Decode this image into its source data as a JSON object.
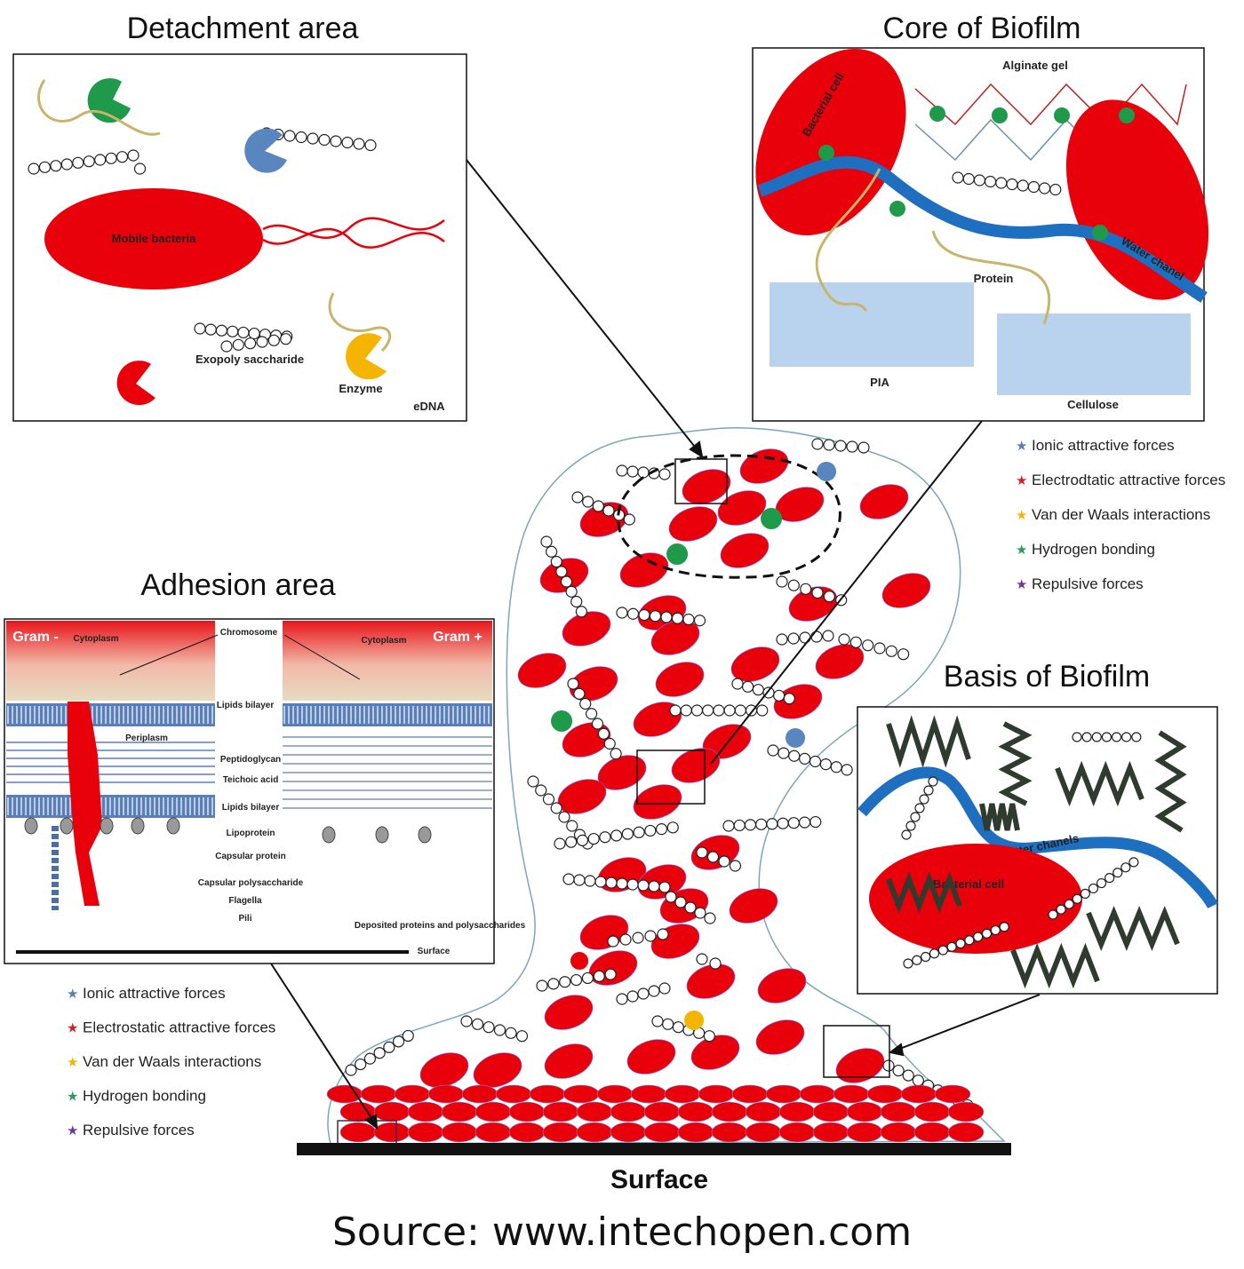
{
  "titles": {
    "detachment": "Detachment area",
    "core": "Core of Biofilm",
    "adhesion": "Adhesion area",
    "basis": "Basis of Biofilm"
  },
  "detachment_labels": {
    "mobile_bacteria": "Mobile bacteria",
    "exopolysaccharide": "Exopoly saccharide",
    "enzyme": "Enzyme",
    "edna": "eDNA"
  },
  "core_labels": {
    "bacterial_cell": "Bacterial cell",
    "alginate_gel": "Alginate gel",
    "water_chanel": "Water chanel",
    "protein": "Protein",
    "pia": "PIA",
    "cellulose": "Cellulose"
  },
  "adhesion_labels": {
    "gram_neg": "Gram -",
    "gram_pos": "Gram +",
    "cytoplasm_left": "Cytoplasm",
    "cytoplasm_right": "Cytoplasm",
    "chromosome": "Chromosome",
    "lipids_bilayer": "Lipids bilayer",
    "periplasm": "Periplasm",
    "peptidoglycan": "Peptidoglycan",
    "teichoic_acid": "Teichoic acid",
    "lipids_bilayer_2": "Lipids bilayer",
    "lipoprotein": "Lipoprotein",
    "capsular_protein": "Capsular protein",
    "capsular_polysaccharide": "Capsular polysaccharide",
    "flagella": "Flagella",
    "pili": "Pili",
    "deposited": "Deposited proteins and polysaccharides",
    "surface": "Surface"
  },
  "basis_labels": {
    "bacterial_cell": "Bacterial cell",
    "water_chanels": "Water chanels"
  },
  "legend_items": [
    {
      "label": "Ionic attractive forces",
      "color": "#5a7fb0"
    },
    {
      "label": "Electrostatic attractive forces",
      "color": "#d42020"
    },
    {
      "label": "Van der Waals interactions",
      "color": "#f0b800"
    },
    {
      "label": "Hydrogen bonding",
      "color": "#2e9a5a"
    },
    {
      "label": "Repulsive forces",
      "color": "#6a3a9a"
    }
  ],
  "legend_right_items": [
    {
      "label": "Ionic attractive forces",
      "color": "#5a7fb0"
    },
    {
      "label": "Electrodtatic attractive forces",
      "color": "#d42020"
    },
    {
      "label": "Van der Waals interactions",
      "color": "#f0b800"
    },
    {
      "label": "Hydrogen bonding",
      "color": "#2e9a5a"
    },
    {
      "label": "Repulsive forces",
      "color": "#6a3a9a"
    }
  ],
  "surface_label": "Surface",
  "source_text": "Source: www.intechopen.com",
  "colors": {
    "cell": "#e8000b",
    "water": "#1f6fc0",
    "enzyme_green": "#1e9a4a",
    "enzyme_blue": "#5a86c0",
    "enzyme_yellow": "#f5b400",
    "protein": "#c8b46a"
  }
}
